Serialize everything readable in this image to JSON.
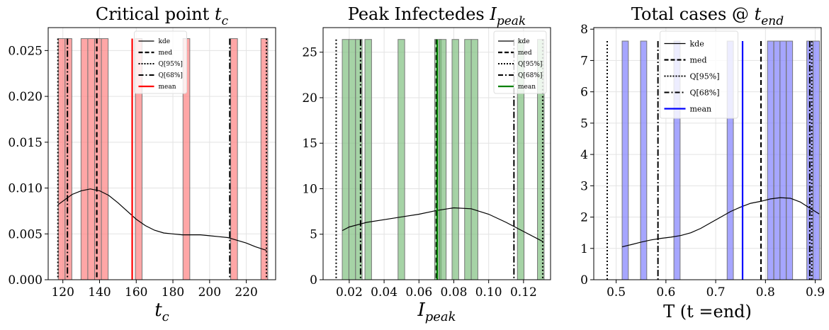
{
  "chart_data": [
    {
      "type": "bar",
      "title": "Critical point t_c",
      "title_text": "Critical point ",
      "title_math": "t",
      "title_sub": "c",
      "xlabel_math": "t",
      "xlabel_sub": "c",
      "xlim": [
        112,
        236
      ],
      "ylim": [
        0,
        0.0275
      ],
      "xticks": [
        120,
        140,
        160,
        180,
        200,
        220
      ],
      "yticks": [
        0.0,
        0.005,
        0.01,
        0.015,
        0.02,
        0.025
      ],
      "ytick_labels": [
        "0.000",
        "0.005",
        "0.010",
        "0.015",
        "0.020",
        "0.025"
      ],
      "xtick_labels": [
        "120",
        "140",
        "160",
        "180",
        "200",
        "220"
      ],
      "hist_color": "#ff8080",
      "mean_color": "#ff0000",
      "bin_width": 3.7,
      "hist_height": 0.0263,
      "hist_bins": [
        117.5,
        121.2,
        129.9,
        133.6,
        137.3,
        141.0,
        159.5,
        185.5,
        211.5,
        228.0
      ],
      "kde": [
        [
          117.5,
          0.0082
        ],
        [
          125,
          0.0093
        ],
        [
          130,
          0.0097
        ],
        [
          135,
          0.0099
        ],
        [
          140,
          0.0097
        ],
        [
          145,
          0.0092
        ],
        [
          150,
          0.0084
        ],
        [
          155,
          0.0075
        ],
        [
          160,
          0.0066
        ],
        [
          165,
          0.0059
        ],
        [
          170,
          0.0054
        ],
        [
          175,
          0.0051
        ],
        [
          180,
          0.005
        ],
        [
          185,
          0.0049
        ],
        [
          190,
          0.0049
        ],
        [
          195,
          0.0049
        ],
        [
          200,
          0.0048
        ],
        [
          205,
          0.0047
        ],
        [
          210,
          0.0046
        ],
        [
          215,
          0.0043
        ],
        [
          220,
          0.004
        ],
        [
          225,
          0.0036
        ],
        [
          231,
          0.0032
        ]
      ],
      "median": 138.5,
      "mean": 157.8,
      "q95": [
        117.3,
        231.0
      ],
      "q68": [
        122.5,
        211.0
      ],
      "legend": [
        "kde",
        "med",
        "Q[95%]",
        "Q[68%]",
        "mean"
      ],
      "legend_position": "top-center",
      "legend_font": 9,
      "grid": true
    },
    {
      "type": "bar",
      "title": "Peak Infectedes I_peak",
      "title_text": "Peak Infectedes ",
      "title_math": "I",
      "title_sub": "peak",
      "xlabel_math": "I",
      "xlabel_sub": "peak",
      "xlim": [
        0.005,
        0.1355
      ],
      "ylim": [
        0,
        27.7
      ],
      "xticks": [
        0.02,
        0.04,
        0.06,
        0.08,
        0.1,
        0.12
      ],
      "yticks": [
        0,
        5,
        10,
        15,
        20,
        25
      ],
      "xtick_labels": [
        "0.02",
        "0.04",
        "0.06",
        "0.08",
        "0.10",
        "0.12"
      ],
      "ytick_labels": [
        "0",
        "5",
        "10",
        "15",
        "20",
        "25"
      ],
      "hist_color": "#80c080",
      "mean_color": "#008000",
      "bin_width": 0.0038,
      "hist_height": 26.4,
      "hist_bins": [
        0.016,
        0.0198,
        0.0236,
        0.029,
        0.048,
        0.069,
        0.0718,
        0.079,
        0.0862,
        0.09,
        0.1165,
        0.128
      ],
      "kde": [
        [
          0.016,
          5.4
        ],
        [
          0.02,
          5.8
        ],
        [
          0.03,
          6.3
        ],
        [
          0.04,
          6.6
        ],
        [
          0.05,
          6.9
        ],
        [
          0.06,
          7.2
        ],
        [
          0.07,
          7.6
        ],
        [
          0.08,
          7.9
        ],
        [
          0.09,
          7.8
        ],
        [
          0.1,
          7.2
        ],
        [
          0.11,
          6.3
        ],
        [
          0.12,
          5.3
        ],
        [
          0.131,
          4.2
        ]
      ],
      "median": 0.07,
      "mean": 0.0705,
      "q95": [
        0.0125,
        0.131
      ],
      "q68": [
        0.0265,
        0.1145
      ],
      "legend": [
        "kde",
        "med",
        "Q[95%]",
        "Q[68%]",
        "mean"
      ],
      "legend_position": "top-right",
      "legend_font": 9,
      "grid": true
    },
    {
      "type": "bar",
      "title": "Total cases @ t_end",
      "title_text": "Total cases @ ",
      "title_math": "t",
      "title_sub": "end",
      "xlabel_math": "T (t =end)",
      "xlabel_sub": "",
      "xlim": [
        0.455,
        0.912
      ],
      "ylim": [
        0,
        8.05
      ],
      "xticks": [
        0.5,
        0.6,
        0.7,
        0.8,
        0.9
      ],
      "yticks": [
        0,
        1,
        2,
        3,
        4,
        5,
        6,
        7,
        8
      ],
      "xtick_labels": [
        "0.5",
        "0.6",
        "0.7",
        "0.8",
        "0.9"
      ],
      "ytick_labels": [
        "0",
        "1",
        "2",
        "3",
        "4",
        "5",
        "6",
        "7",
        "8"
      ],
      "hist_color": "#8080ff",
      "mean_color": "#0000ff",
      "bin_width": 0.0125,
      "hist_height": 7.62,
      "hist_bins": [
        0.512,
        0.549,
        0.616,
        0.723,
        0.804,
        0.817,
        0.829,
        0.842,
        0.883,
        0.896
      ],
      "kde": [
        [
          0.512,
          1.05
        ],
        [
          0.53,
          1.12
        ],
        [
          0.55,
          1.2
        ],
        [
          0.57,
          1.27
        ],
        [
          0.59,
          1.32
        ],
        [
          0.61,
          1.36
        ],
        [
          0.63,
          1.41
        ],
        [
          0.65,
          1.5
        ],
        [
          0.67,
          1.64
        ],
        [
          0.69,
          1.82
        ],
        [
          0.71,
          2.0
        ],
        [
          0.73,
          2.18
        ],
        [
          0.75,
          2.32
        ],
        [
          0.77,
          2.44
        ],
        [
          0.79,
          2.5
        ],
        [
          0.81,
          2.58
        ],
        [
          0.83,
          2.62
        ],
        [
          0.85,
          2.6
        ],
        [
          0.87,
          2.48
        ],
        [
          0.89,
          2.28
        ],
        [
          0.908,
          2.1
        ]
      ],
      "median": 0.791,
      "mean": 0.754,
      "q95": [
        0.482,
        0.893
      ],
      "q68": [
        0.584,
        0.889
      ],
      "legend": [
        "kde",
        "med",
        "Q[95%]",
        "Q[68%]",
        "mean"
      ],
      "legend_position": "top-center",
      "legend_font": 11,
      "grid": true
    }
  ]
}
